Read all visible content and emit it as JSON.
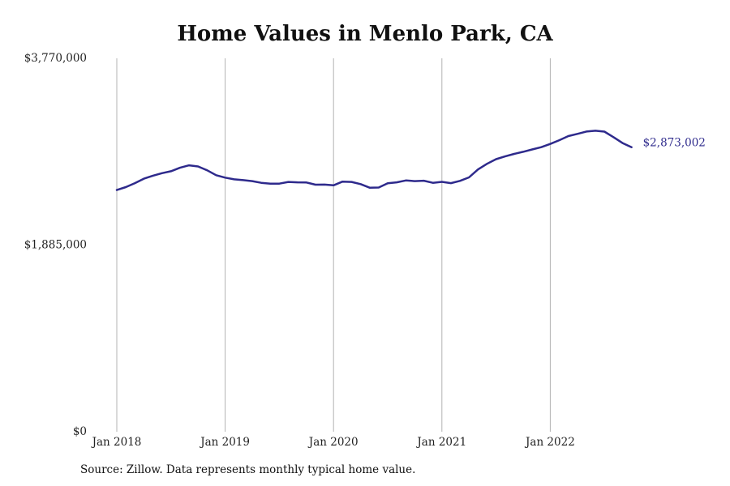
{
  "chart_data": {
    "type": "line",
    "title": "Home Values in Menlo Park, CA",
    "xlabel": "",
    "ylabel": "",
    "ylim": [
      0,
      3770000
    ],
    "y_ticks": [
      {
        "value": 0,
        "label": "$0"
      },
      {
        "value": 1885000,
        "label": "$1,885,000"
      },
      {
        "value": 3770000,
        "label": "$3,770,000"
      }
    ],
    "x_ticks": [
      {
        "value": 2018.0,
        "label": "Jan 2018"
      },
      {
        "value": 2019.0,
        "label": "Jan 2019"
      },
      {
        "value": 2020.0,
        "label": "Jan 2020"
      },
      {
        "value": 2021.0,
        "label": "Jan 2021"
      },
      {
        "value": 2022.0,
        "label": "Jan 2022"
      }
    ],
    "xlim": [
      2018.0,
      2022.75
    ],
    "grid": "vertical",
    "series": [
      {
        "color": "#2e2a8c",
        "end_label": "$2,873,002",
        "x": [
          2018.0,
          2018.083,
          2018.167,
          2018.25,
          2018.333,
          2018.417,
          2018.5,
          2018.583,
          2018.667,
          2018.75,
          2018.833,
          2018.917,
          2019.0,
          2019.083,
          2019.167,
          2019.25,
          2019.333,
          2019.417,
          2019.5,
          2019.583,
          2019.667,
          2019.75,
          2019.833,
          2019.917,
          2020.0,
          2020.083,
          2020.167,
          2020.25,
          2020.333,
          2020.417,
          2020.5,
          2020.583,
          2020.667,
          2020.75,
          2020.833,
          2020.917,
          2021.0,
          2021.083,
          2021.167,
          2021.25,
          2021.333,
          2021.417,
          2021.5,
          2021.583,
          2021.667,
          2021.75,
          2021.833,
          2021.917,
          2022.0,
          2022.083,
          2022.167,
          2022.25,
          2022.333,
          2022.417,
          2022.5,
          2022.583,
          2022.667,
          2022.75
        ],
        "values": [
          2440000,
          2470000,
          2510000,
          2555000,
          2585000,
          2610000,
          2630000,
          2665000,
          2690000,
          2678000,
          2640000,
          2590000,
          2565000,
          2548000,
          2540000,
          2530000,
          2513000,
          2505000,
          2505000,
          2522000,
          2518000,
          2516000,
          2494000,
          2495000,
          2488000,
          2525000,
          2522000,
          2500000,
          2464000,
          2466000,
          2508000,
          2518000,
          2537000,
          2530000,
          2534000,
          2513000,
          2523000,
          2510000,
          2533000,
          2568000,
          2648000,
          2705000,
          2752000,
          2780000,
          2805000,
          2826000,
          2850000,
          2873000,
          2906000,
          2943000,
          2985000,
          3007000,
          3031000,
          3039000,
          3030000,
          2974000,
          2915000,
          2873002
        ]
      }
    ],
    "source": "Source: Zillow. Data represents monthly typical home value."
  }
}
